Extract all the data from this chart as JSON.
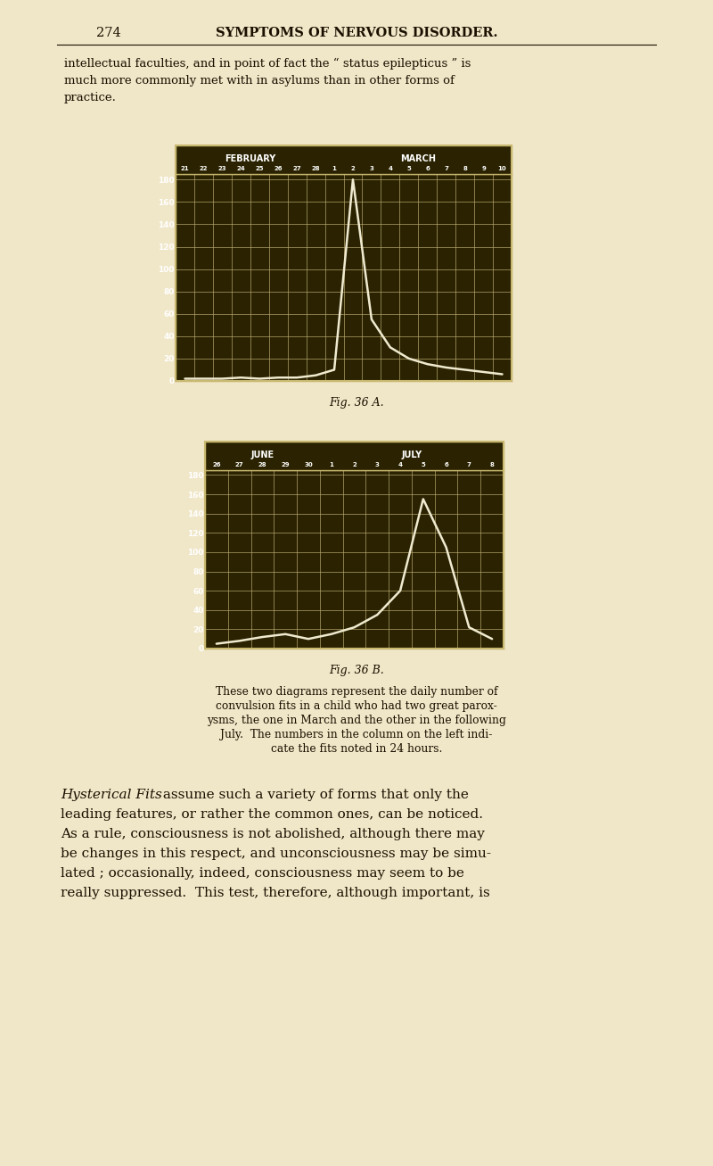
{
  "page_bg": "#f0e6c8",
  "chart_bg": "#2a2200",
  "grid_color": "#b8a870",
  "line_color": "#f0ead0",
  "text_color": "#1a1000",
  "chart_border": "#c8b870",
  "chart_a": {
    "month1": "FEBRUARY",
    "month2": "MARCH",
    "days1": [
      21,
      22,
      23,
      24,
      25,
      26,
      27,
      28
    ],
    "days2": [
      1,
      2,
      3,
      4,
      5,
      6,
      7,
      8,
      9,
      10
    ],
    "yticks": [
      0,
      20,
      40,
      60,
      80,
      100,
      120,
      140,
      160,
      180
    ],
    "ymax": 185,
    "data_y": [
      2,
      2,
      2,
      3,
      2,
      3,
      3,
      5,
      10,
      180,
      55,
      30,
      20,
      15,
      12,
      10,
      8,
      6
    ]
  },
  "chart_b": {
    "month1": "JUNE",
    "month2": "JULY",
    "days1": [
      26,
      27,
      28,
      29,
      30
    ],
    "days2": [
      1,
      2,
      3,
      4,
      5,
      6,
      7,
      8
    ],
    "yticks": [
      0,
      20,
      40,
      60,
      80,
      100,
      120,
      140,
      160,
      180
    ],
    "ymax": 185,
    "data_y": [
      5,
      8,
      12,
      15,
      10,
      15,
      22,
      35,
      60,
      155,
      105,
      22,
      10
    ]
  },
  "page_number": "274",
  "page_heading": "SYMPTOMS OF NERVOUS DISORDER.",
  "body_before": [
    "intellectual faculties, and in point of fact the “ status epilepticus ” is",
    "much more commonly met with in asylums than in other forms of",
    "practice."
  ],
  "fig_a_caption": "Fig. 36 A.",
  "fig_b_caption": "Fig. 36 B.",
  "caption_lines": [
    "These two diagrams represent the daily number of",
    "convulsion fits in a child who had two great parox-",
    "ysms, the one in March and the other in the following",
    "July.  The numbers in the column on the left indi-",
    "cate the fits noted in 24 hours."
  ],
  "italic_start": "Hysterical Fits",
  "body_after_line1_rest": " assume such a variety of forms that only the",
  "body_after_lines": [
    "leading features, or rather the common ones, can be noticed.",
    "As a rule, consciousness is not abolished, although there may",
    "be changes in this respect, and unconsciousness may be simu-",
    "lated ; occasionally, indeed, consciousness may seem to be",
    "really suppressed.  This test, therefore, although important, is"
  ]
}
